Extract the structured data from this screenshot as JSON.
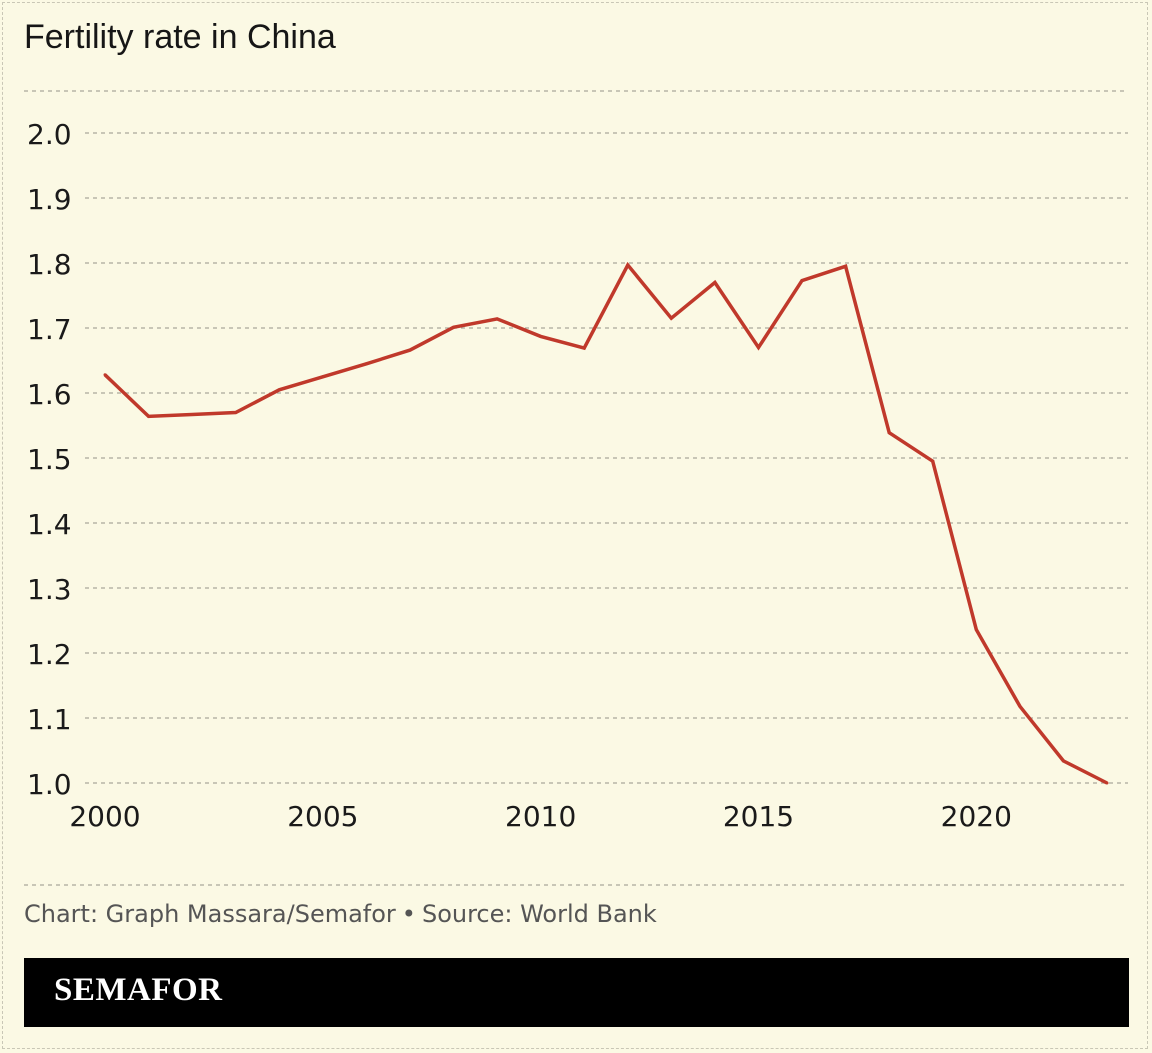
{
  "chart_data": {
    "type": "line",
    "title": "Fertility rate in China",
    "xlabel": "",
    "ylabel": "",
    "x": [
      2000,
      2001,
      2002,
      2003,
      2004,
      2005,
      2006,
      2007,
      2008,
      2009,
      2010,
      2011,
      2012,
      2013,
      2014,
      2015,
      2016,
      2017,
      2018,
      2019,
      2020,
      2021,
      2022,
      2023
    ],
    "series": [
      {
        "name": "Fertility rate",
        "color": "#c0392b",
        "values": [
          1.628,
          1.564,
          1.567,
          1.57,
          1.605,
          1.625,
          1.645,
          1.666,
          1.701,
          1.714,
          1.687,
          1.669,
          1.797,
          1.715,
          1.77,
          1.67,
          1.773,
          1.795,
          1.539,
          1.495,
          1.236,
          1.118,
          1.034,
          1.0
        ]
      }
    ],
    "ylim": [
      1.0,
      2.0
    ],
    "yticks": [
      "1.0",
      "1.1",
      "1.2",
      "1.3",
      "1.4",
      "1.5",
      "1.6",
      "1.7",
      "1.8",
      "1.9",
      "2.0"
    ],
    "xticks": [
      "2000",
      "2005",
      "2010",
      "2015",
      "2020"
    ],
    "grid": true
  },
  "footer": {
    "credit": "Chart: Graph Massara/Semafor",
    "separator": "•",
    "source": "Source: World Bank"
  },
  "brand": "SEMAFOR"
}
